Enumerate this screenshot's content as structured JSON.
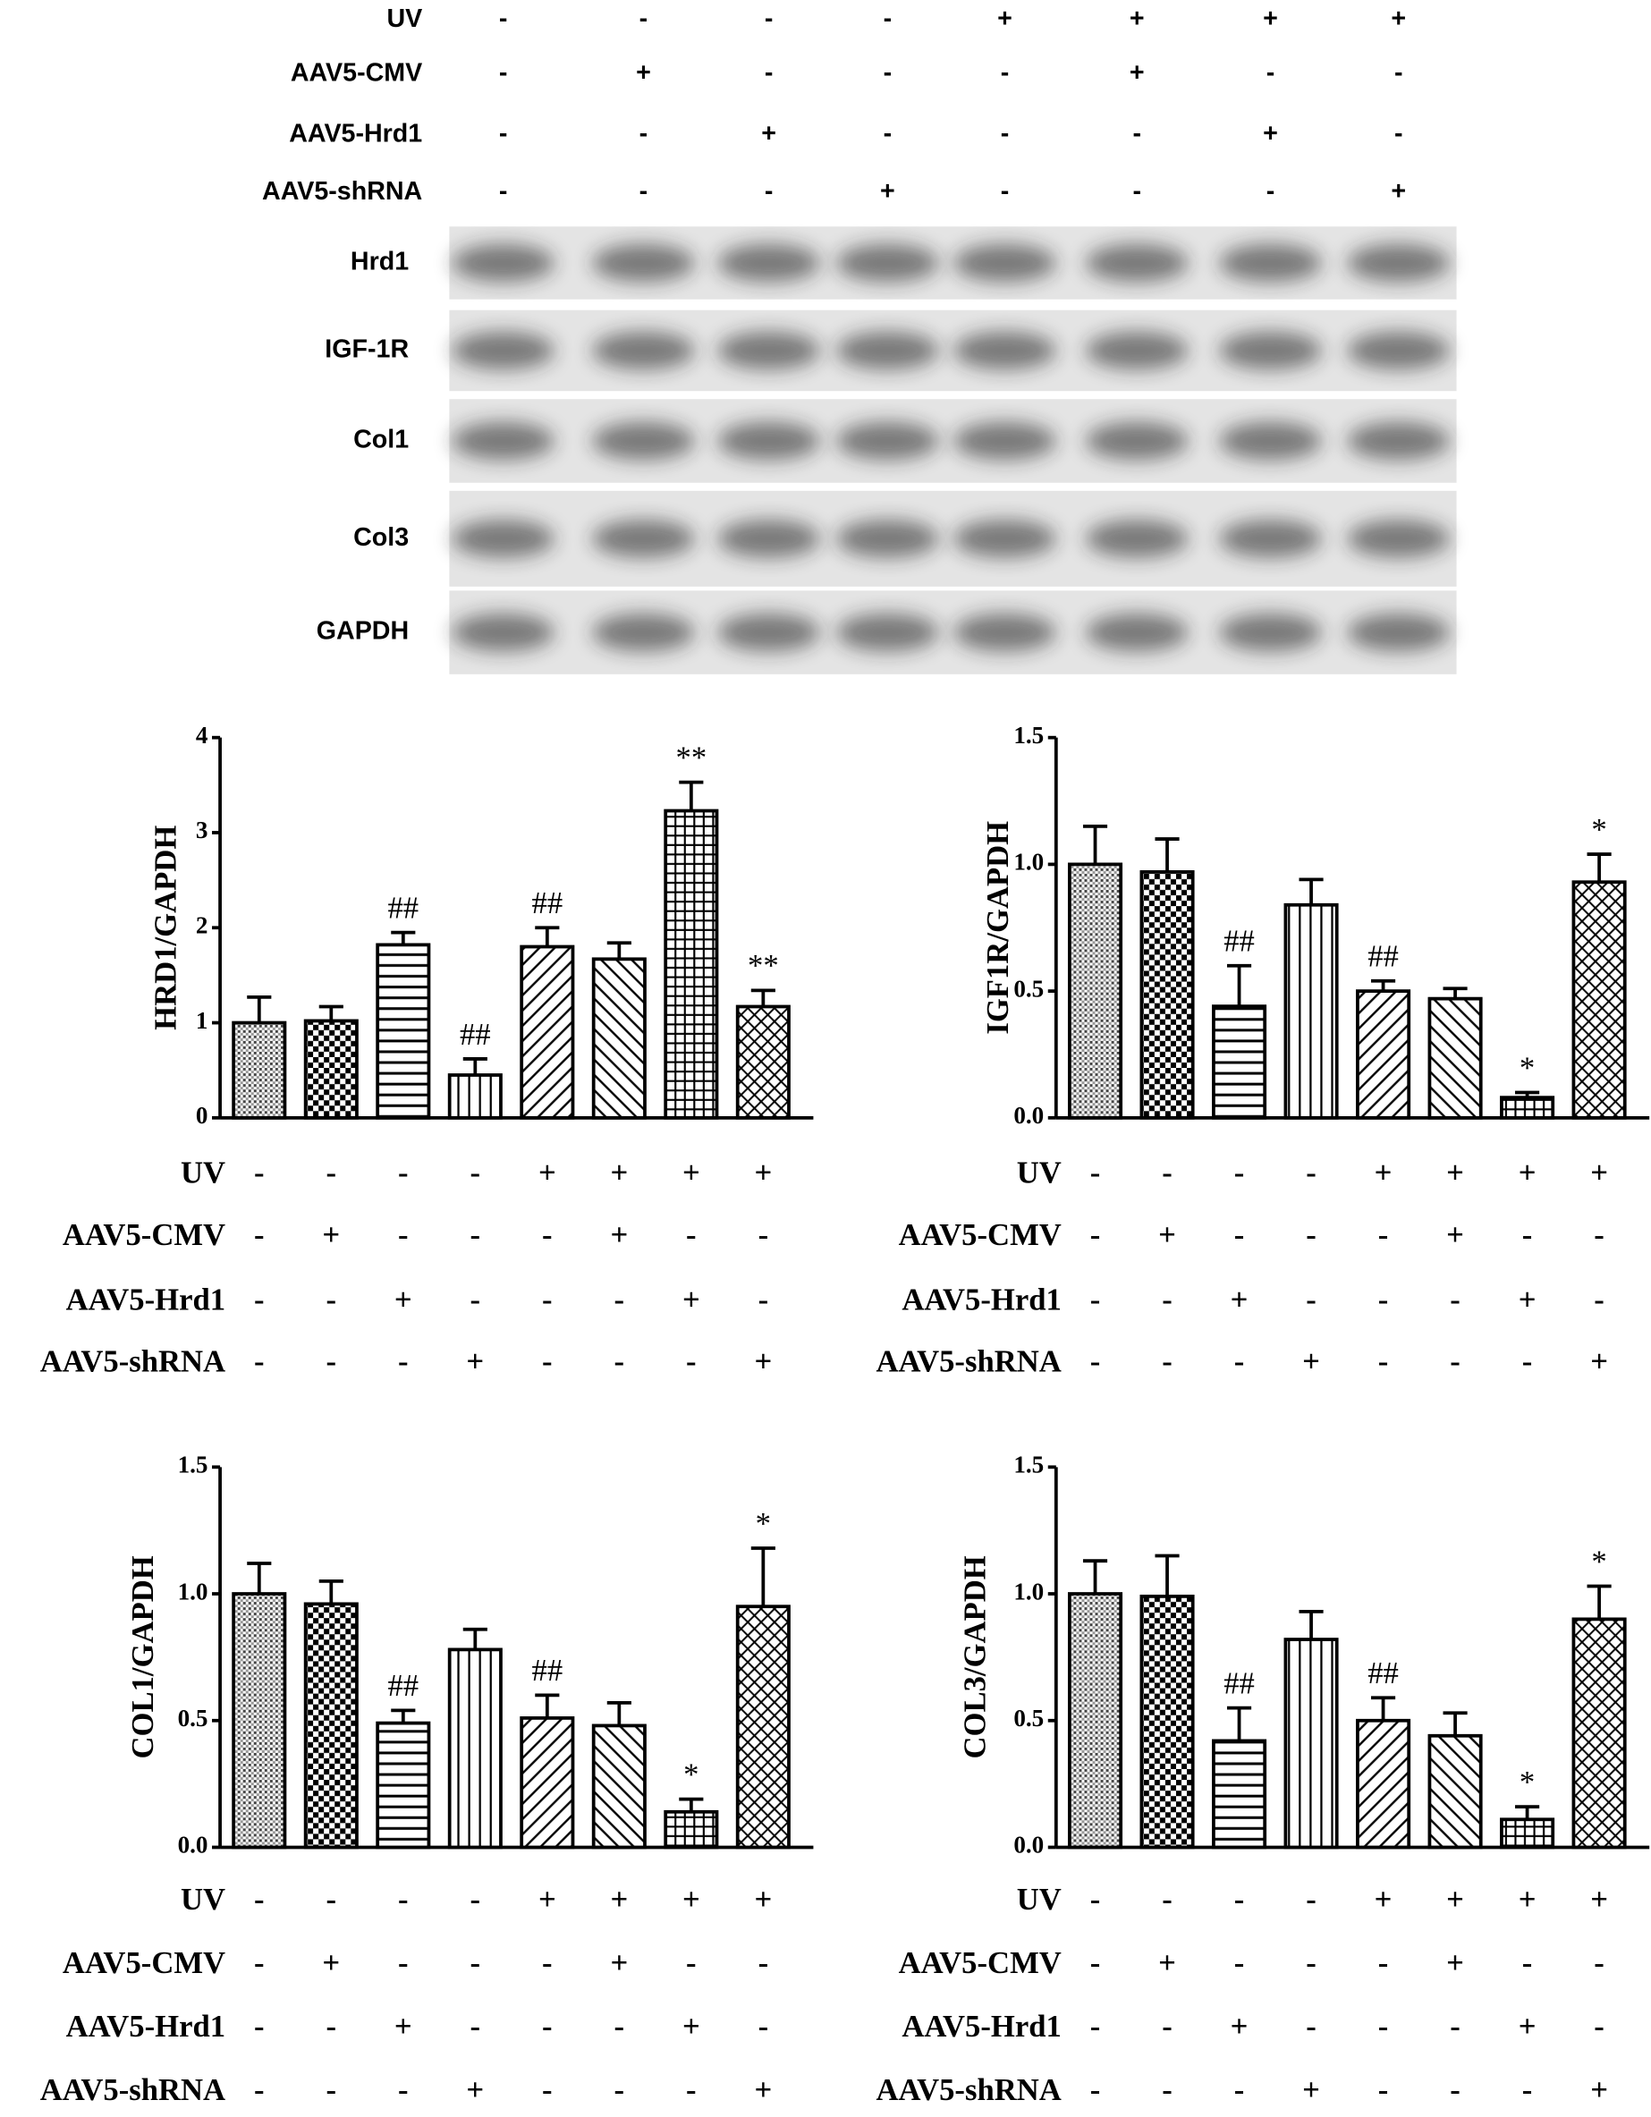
{
  "blot": {
    "conditions": [
      {
        "name": "UV",
        "signs": [
          "-",
          "-",
          "-",
          "-",
          "+",
          "+",
          "+",
          "+"
        ]
      },
      {
        "name": "AAV5-CMV",
        "signs": [
          "-",
          "+",
          "-",
          "-",
          "-",
          "+",
          "-",
          "-"
        ]
      },
      {
        "name": "AAV5-Hrd1",
        "signs": [
          "-",
          "-",
          "+",
          "-",
          "-",
          "-",
          "+",
          "-"
        ]
      },
      {
        "name": "AAV5-shRNA",
        "signs": [
          "-",
          "-",
          "-",
          "+",
          "-",
          "-",
          "-",
          "+"
        ]
      }
    ],
    "bands": [
      "Hrd1",
      "IGF-1R",
      "Col1",
      "Col3",
      "GAPDH"
    ]
  },
  "chart_data": [
    {
      "type": "bar",
      "ylabel": "HRD1/GAPDH",
      "values": [
        1.0,
        1.02,
        1.82,
        0.45,
        1.8,
        1.67,
        3.23,
        1.17
      ],
      "errors": [
        0.27,
        0.15,
        0.13,
        0.17,
        0.2,
        0.17,
        0.3,
        0.17
      ],
      "annotations": [
        null,
        null,
        "##",
        "##",
        "##",
        null,
        "**",
        "**"
      ],
      "ylim": [
        0,
        4
      ],
      "yticks": [
        0,
        1,
        2,
        3,
        4
      ],
      "conditions": [
        {
          "name": "UV",
          "signs": [
            "-",
            "-",
            "-",
            "-",
            "+",
            "+",
            "+",
            "+"
          ]
        },
        {
          "name": "AAV5-CMV",
          "signs": [
            "-",
            "+",
            "-",
            "-",
            "-",
            "+",
            "-",
            "-"
          ]
        },
        {
          "name": "AAV5-Hrd1",
          "signs": [
            "-",
            "-",
            "+",
            "-",
            "-",
            "-",
            "+",
            "-"
          ]
        },
        {
          "name": "AAV5-shRNA",
          "signs": [
            "-",
            "-",
            "-",
            "+",
            "-",
            "-",
            "-",
            "+"
          ]
        }
      ]
    },
    {
      "type": "bar",
      "ylabel": "IGF1R/GAPDH",
      "values": [
        1.0,
        0.97,
        0.44,
        0.84,
        0.5,
        0.47,
        0.08,
        0.93
      ],
      "errors": [
        0.15,
        0.13,
        0.16,
        0.1,
        0.04,
        0.04,
        0.02,
        0.11
      ],
      "annotations": [
        null,
        null,
        "##",
        null,
        "##",
        null,
        "*",
        "*"
      ],
      "ylim": [
        0,
        1.5
      ],
      "yticks": [
        {
          "value": 0,
          "label": "0.0"
        },
        0.5,
        {
          "value": 1,
          "label": "1.0"
        },
        1.5
      ],
      "conditions": [
        {
          "name": "UV",
          "signs": [
            "-",
            "-",
            "-",
            "-",
            "+",
            "+",
            "+",
            "+"
          ]
        },
        {
          "name": "AAV5-CMV",
          "signs": [
            "-",
            "+",
            "-",
            "-",
            "-",
            "+",
            "-",
            "-"
          ]
        },
        {
          "name": "AAV5-Hrd1",
          "signs": [
            "-",
            "-",
            "+",
            "-",
            "-",
            "-",
            "+",
            "-"
          ]
        },
        {
          "name": "AAV5-shRNA",
          "signs": [
            "-",
            "-",
            "-",
            "+",
            "-",
            "-",
            "-",
            "+"
          ]
        }
      ]
    },
    {
      "type": "bar",
      "ylabel": "COL1/GAPDH",
      "values": [
        1.0,
        0.96,
        0.49,
        0.78,
        0.51,
        0.48,
        0.14,
        0.95
      ],
      "errors": [
        0.12,
        0.09,
        0.05,
        0.08,
        0.09,
        0.09,
        0.05,
        0.23
      ],
      "annotations": [
        null,
        null,
        "##",
        null,
        "##",
        null,
        "*",
        "*"
      ],
      "ylim": [
        0,
        1.5
      ],
      "yticks": [
        {
          "value": 0,
          "label": "0.0"
        },
        0.5,
        {
          "value": 1,
          "label": "1.0"
        },
        1.5
      ],
      "conditions": [
        {
          "name": "UV",
          "signs": [
            "-",
            "-",
            "-",
            "-",
            "+",
            "+",
            "+",
            "+"
          ]
        },
        {
          "name": "AAV5-CMV",
          "signs": [
            "-",
            "+",
            "-",
            "-",
            "-",
            "+",
            "-",
            "-"
          ]
        },
        {
          "name": "AAV5-Hrd1",
          "signs": [
            "-",
            "-",
            "+",
            "-",
            "-",
            "-",
            "+",
            "-"
          ]
        },
        {
          "name": "AAV5-shRNA",
          "signs": [
            "-",
            "-",
            "-",
            "+",
            "-",
            "-",
            "-",
            "+"
          ]
        }
      ]
    },
    {
      "type": "bar",
      "ylabel": "COL3/GAPDH",
      "values": [
        1.0,
        0.99,
        0.42,
        0.82,
        0.5,
        0.44,
        0.11,
        0.9
      ],
      "errors": [
        0.13,
        0.16,
        0.13,
        0.11,
        0.09,
        0.09,
        0.05,
        0.13
      ],
      "annotations": [
        null,
        null,
        "##",
        null,
        "##",
        null,
        "*",
        "*"
      ],
      "ylim": [
        0,
        1.5
      ],
      "yticks": [
        {
          "value": 0,
          "label": "0.0"
        },
        0.5,
        {
          "value": 1,
          "label": "1.0"
        },
        1.5
      ],
      "conditions": [
        {
          "name": "UV",
          "signs": [
            "-",
            "-",
            "-",
            "-",
            "+",
            "+",
            "+",
            "+"
          ]
        },
        {
          "name": "AAV5-CMV",
          "signs": [
            "-",
            "+",
            "-",
            "-",
            "-",
            "+",
            "-",
            "-"
          ]
        },
        {
          "name": "AAV5-Hrd1",
          "signs": [
            "-",
            "-",
            "+",
            "-",
            "-",
            "-",
            "+",
            "-"
          ]
        },
        {
          "name": "AAV5-shRNA",
          "signs": [
            "-",
            "-",
            "-",
            "+",
            "-",
            "-",
            "-",
            "+"
          ]
        }
      ]
    }
  ]
}
